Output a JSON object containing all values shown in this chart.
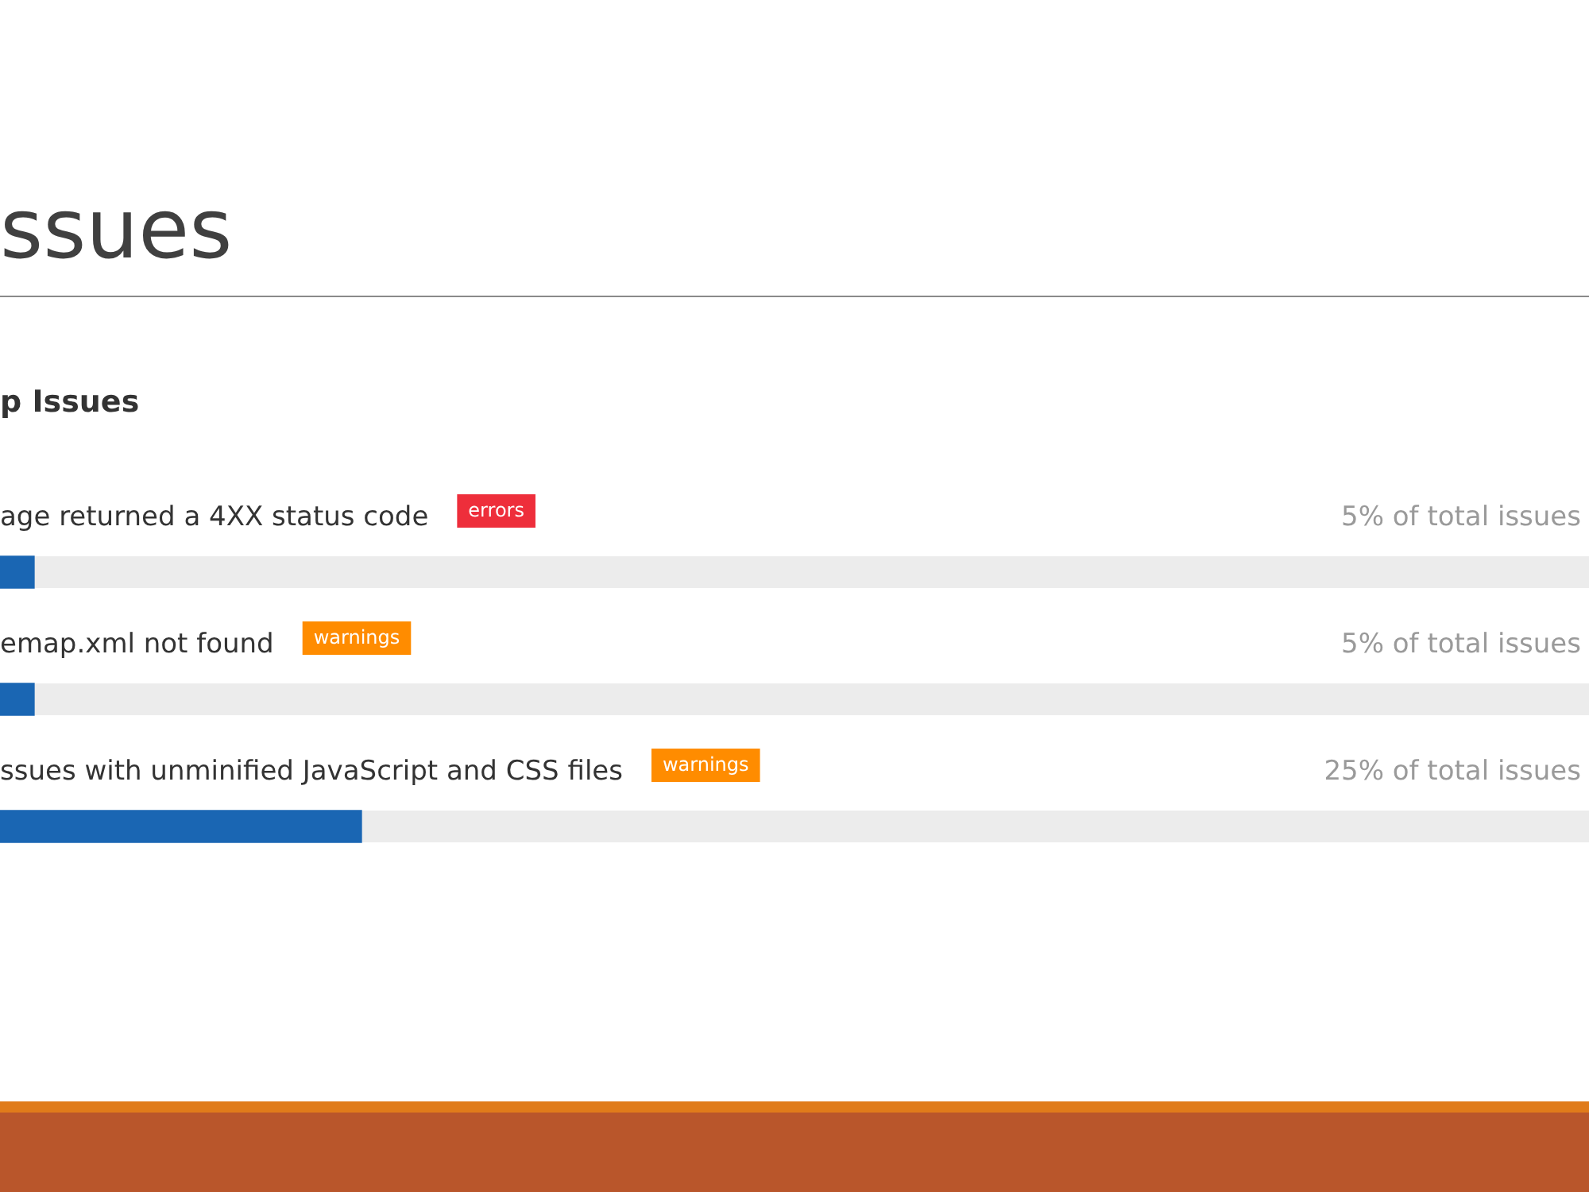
{
  "chart_data": {
    "type": "bar",
    "title": "ssues",
    "subtitle": "p Issues",
    "orientation": "horizontal",
    "categories": [
      "age returned a 4XX status code",
      "emap.xml not found",
      "ssues with unminified JavaScript and CSS files"
    ],
    "values": [
      5,
      5,
      25
    ],
    "color": "#1a66b3",
    "value_labels": [
      "5% of total issues",
      "5% of total issues",
      "25% of total issues"
    ],
    "annotations": [
      "errors",
      "warnings",
      "warnings"
    ],
    "xlim": [
      0,
      100
    ],
    "tick_labels": false
  }
}
